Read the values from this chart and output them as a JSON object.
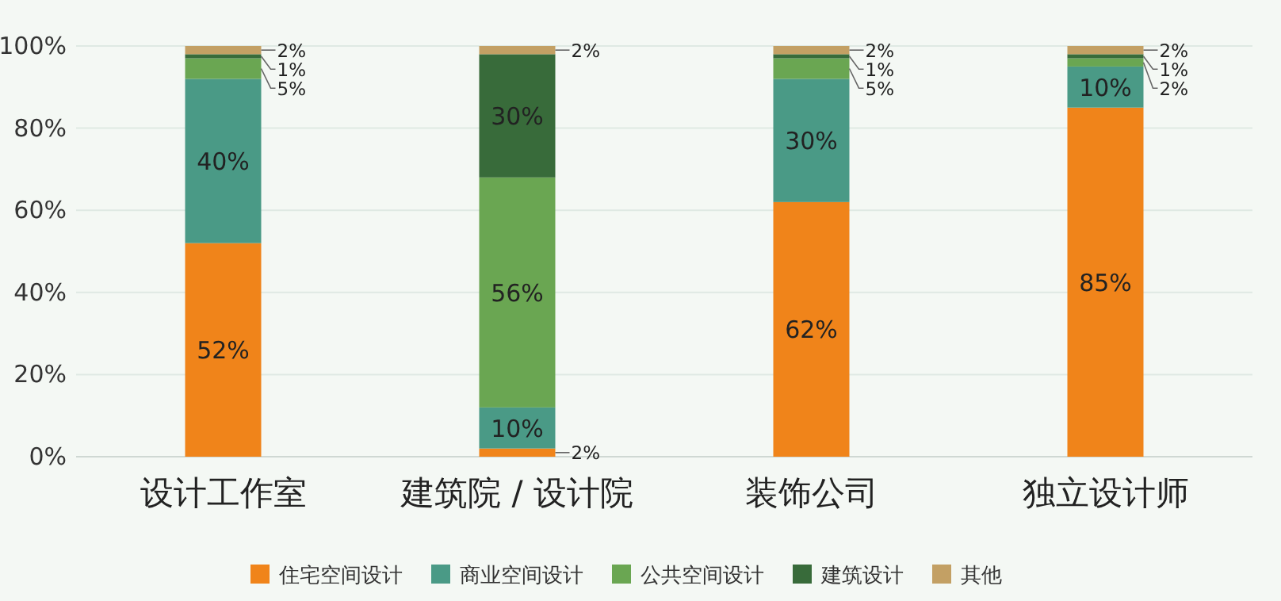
{
  "chart_data": {
    "type": "bar",
    "stacked": true,
    "categories": [
      "设计工作室",
      "建筑院 / 设计院",
      "装饰公司",
      "独立设计师"
    ],
    "series": [
      {
        "name": "住宅空间设计",
        "color": "#f0841a",
        "values": [
          52,
          2,
          62,
          85
        ],
        "value_labels": [
          "52%",
          "2%",
          "62%",
          "85%"
        ]
      },
      {
        "name": "商业空间设计",
        "color": "#4a9a86",
        "values": [
          40,
          10,
          30,
          10
        ],
        "value_labels": [
          "40%",
          "10%",
          "30%",
          "10%"
        ]
      },
      {
        "name": "公共空间设计",
        "color": "#6aa652",
        "values": [
          5,
          56,
          5,
          2
        ],
        "value_labels": [
          "5%",
          "56%",
          "5%",
          "2%"
        ]
      },
      {
        "name": "建筑设计",
        "color": "#386b3a",
        "values": [
          1,
          30,
          1,
          1
        ],
        "value_labels": [
          "1%",
          "30%",
          "1%",
          "1%"
        ]
      },
      {
        "name": "其他",
        "color": "#c3a064",
        "values": [
          2,
          2,
          2,
          2
        ],
        "value_labels": [
          "2%",
          "2%",
          "2%",
          "2%"
        ]
      }
    ],
    "ylim": [
      0,
      100
    ],
    "yticks": [
      {
        "value": 0,
        "label": "0%"
      },
      {
        "value": 20,
        "label": "20%"
      },
      {
        "value": 40,
        "label": "40%"
      },
      {
        "value": 60,
        "label": "60%"
      },
      {
        "value": 80,
        "label": "80%"
      },
      {
        "value": 100,
        "label": "100%"
      }
    ],
    "grid": "y",
    "legend": "bottom"
  }
}
